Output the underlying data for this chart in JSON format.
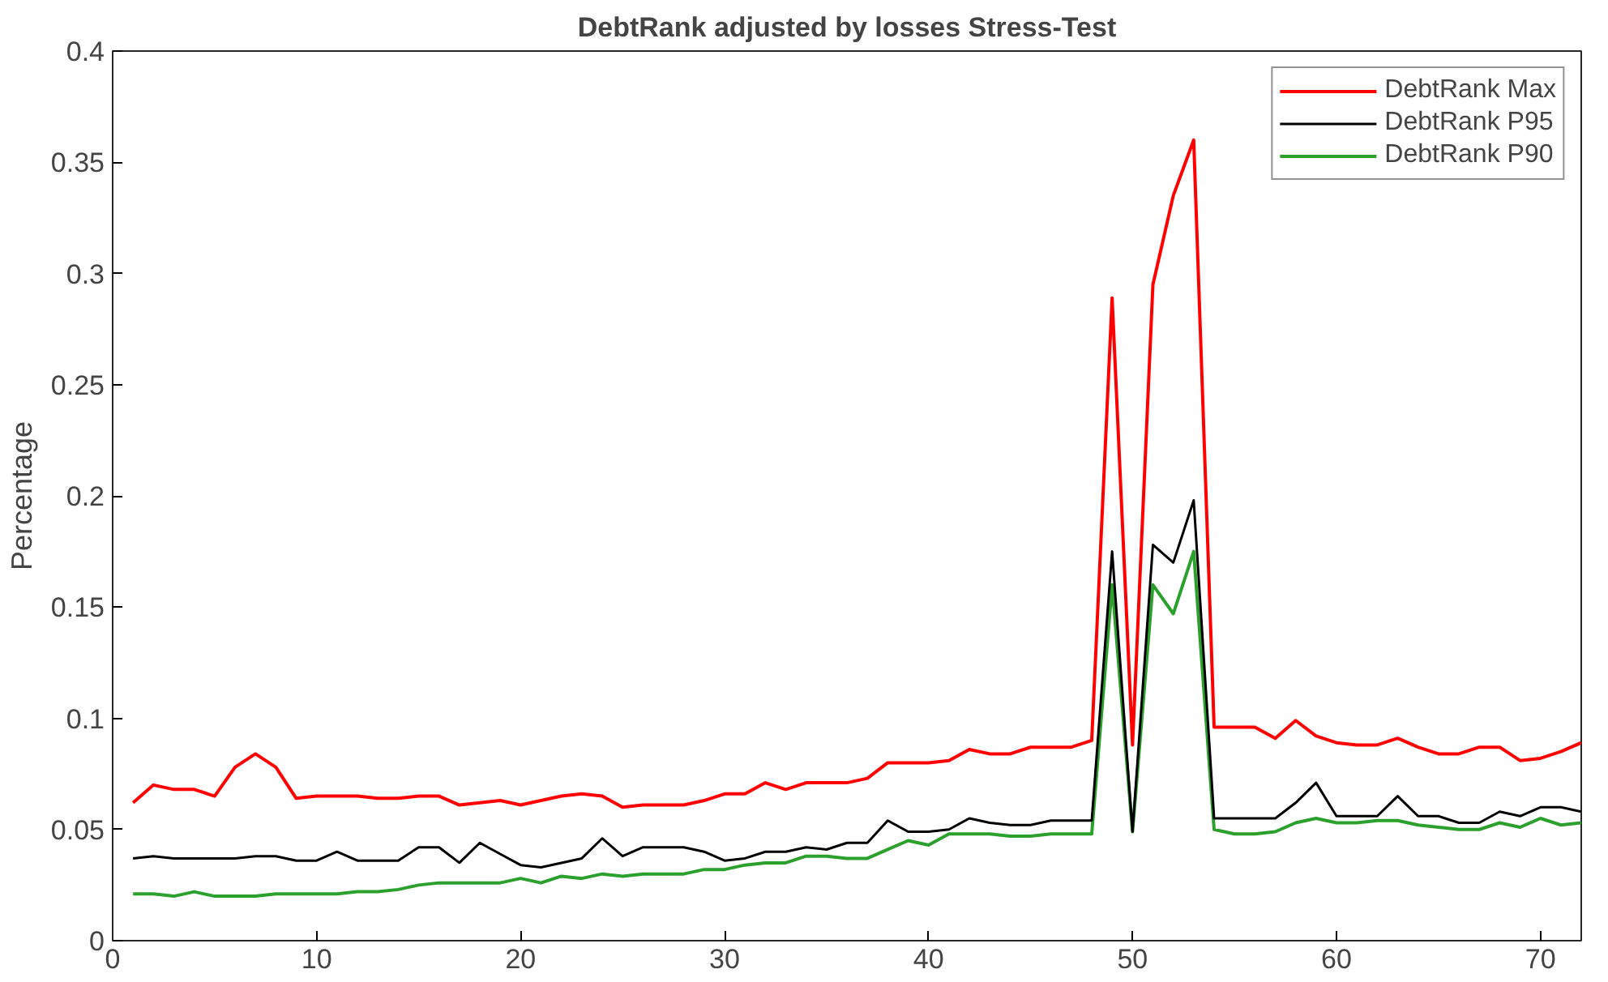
{
  "chart_data": {
    "type": "line",
    "title": "DebtRank adjusted by losses Stress-Test",
    "ylabel": "Percentage",
    "x": [
      1,
      2,
      3,
      4,
      5,
      6,
      7,
      8,
      9,
      10,
      11,
      12,
      13,
      14,
      15,
      16,
      17,
      18,
      19,
      20,
      21,
      22,
      23,
      24,
      25,
      26,
      27,
      28,
      29,
      30,
      31,
      32,
      33,
      34,
      35,
      36,
      37,
      38,
      39,
      40,
      41,
      42,
      43,
      44,
      45,
      46,
      47,
      48,
      49,
      50,
      51,
      52,
      53,
      54,
      55,
      56,
      57,
      58,
      59,
      60,
      61,
      62,
      63,
      64,
      65,
      66,
      67,
      68,
      69,
      70,
      71,
      72
    ],
    "series": [
      {
        "name": "DebtRank Max",
        "color": "#ff0000",
        "values": [
          0.062,
          0.07,
          0.068,
          0.068,
          0.065,
          0.078,
          0.084,
          0.078,
          0.064,
          0.065,
          0.065,
          0.065,
          0.064,
          0.064,
          0.065,
          0.065,
          0.061,
          0.062,
          0.063,
          0.061,
          0.063,
          0.065,
          0.066,
          0.065,
          0.06,
          0.061,
          0.061,
          0.061,
          0.063,
          0.066,
          0.066,
          0.071,
          0.068,
          0.071,
          0.071,
          0.071,
          0.073,
          0.08,
          0.08,
          0.08,
          0.081,
          0.086,
          0.084,
          0.084,
          0.087,
          0.087,
          0.087,
          0.09,
          0.289,
          0.088,
          0.295,
          0.335,
          0.36,
          0.096,
          0.096,
          0.096,
          0.091,
          0.099,
          0.092,
          0.089,
          0.088,
          0.088,
          0.091,
          0.087,
          0.084,
          0.084,
          0.087,
          0.087,
          0.081,
          0.082,
          0.085,
          0.089
        ]
      },
      {
        "name": "DebtRank P95",
        "color": "#000000",
        "values": [
          0.037,
          0.038,
          0.037,
          0.037,
          0.037,
          0.037,
          0.038,
          0.038,
          0.036,
          0.036,
          0.04,
          0.036,
          0.036,
          0.036,
          0.042,
          0.042,
          0.035,
          0.044,
          0.039,
          0.034,
          0.033,
          0.035,
          0.037,
          0.046,
          0.038,
          0.042,
          0.042,
          0.042,
          0.04,
          0.036,
          0.037,
          0.04,
          0.04,
          0.042,
          0.041,
          0.044,
          0.044,
          0.054,
          0.049,
          0.049,
          0.05,
          0.055,
          0.053,
          0.052,
          0.052,
          0.054,
          0.054,
          0.054,
          0.175,
          0.049,
          0.178,
          0.17,
          0.198,
          0.055,
          0.055,
          0.055,
          0.055,
          0.062,
          0.071,
          0.056,
          0.056,
          0.056,
          0.065,
          0.056,
          0.056,
          0.053,
          0.053,
          0.058,
          0.056,
          0.06,
          0.06,
          0.058
        ]
      },
      {
        "name": "DebtRank P90",
        "color": "#2ca02c",
        "values": [
          0.021,
          0.021,
          0.02,
          0.022,
          0.02,
          0.02,
          0.02,
          0.021,
          0.021,
          0.021,
          0.021,
          0.022,
          0.022,
          0.023,
          0.025,
          0.026,
          0.026,
          0.026,
          0.026,
          0.028,
          0.026,
          0.029,
          0.028,
          0.03,
          0.029,
          0.03,
          0.03,
          0.03,
          0.032,
          0.032,
          0.034,
          0.035,
          0.035,
          0.038,
          0.038,
          0.037,
          0.037,
          0.041,
          0.045,
          0.043,
          0.048,
          0.048,
          0.048,
          0.047,
          0.047,
          0.048,
          0.048,
          0.048,
          0.16,
          0.049,
          0.16,
          0.147,
          0.175,
          0.05,
          0.048,
          0.048,
          0.049,
          0.053,
          0.055,
          0.053,
          0.053,
          0.054,
          0.054,
          0.052,
          0.051,
          0.05,
          0.05,
          0.053,
          0.051,
          0.055,
          0.052,
          0.053
        ]
      }
    ],
    "xlim": [
      0,
      72
    ],
    "xticks": [
      0,
      10,
      20,
      30,
      40,
      50,
      60,
      70
    ],
    "ylim": [
      0,
      0.4
    ],
    "yticks": [
      0,
      0.05,
      0.1,
      0.15,
      0.2,
      0.25,
      0.3,
      0.35,
      0.4
    ],
    "legend": "top right",
    "grid": false,
    "marker": "none",
    "line_style": "solid"
  }
}
